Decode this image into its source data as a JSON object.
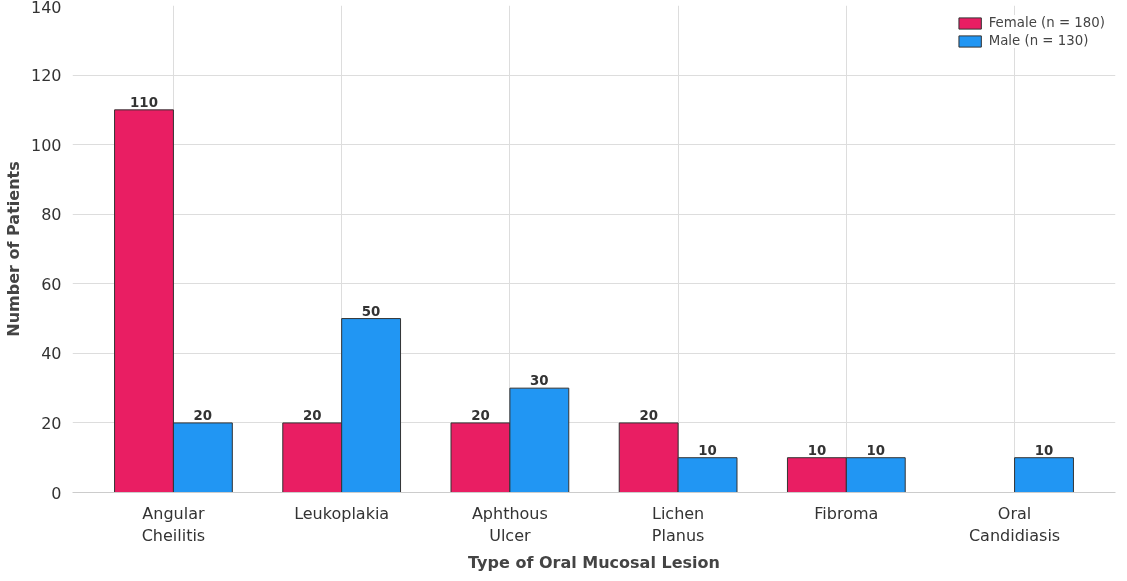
{
  "chart_data": {
    "type": "bar",
    "xlabel": "Type of Oral Mucosal Lesion",
    "ylabel": "Number of Patients",
    "categories": [
      "Angular Cheilitis",
      "Leukoplakia",
      "Aphthous Ulcer",
      "Lichen Planus",
      "Fibroma",
      "Oral Candidiasis"
    ],
    "series": [
      {
        "name": "Female (n = 180)",
        "color": "#e91e63",
        "values": [
          110,
          20,
          20,
          20,
          10,
          null
        ],
        "value_labels": [
          "110",
          "20",
          "20",
          "20",
          "10",
          null
        ]
      },
      {
        "name": "Male (n = 130)",
        "color": "#2196f3",
        "values": [
          20,
          50,
          30,
          10,
          10,
          10
        ],
        "value_labels": [
          "20",
          "50",
          "30",
          "10",
          "10",
          "10"
        ]
      }
    ],
    "ylim": [
      0,
      140
    ],
    "yticks": [
      0,
      20,
      40,
      60,
      80,
      100,
      120,
      140
    ],
    "grid": true,
    "legend": "top right"
  }
}
